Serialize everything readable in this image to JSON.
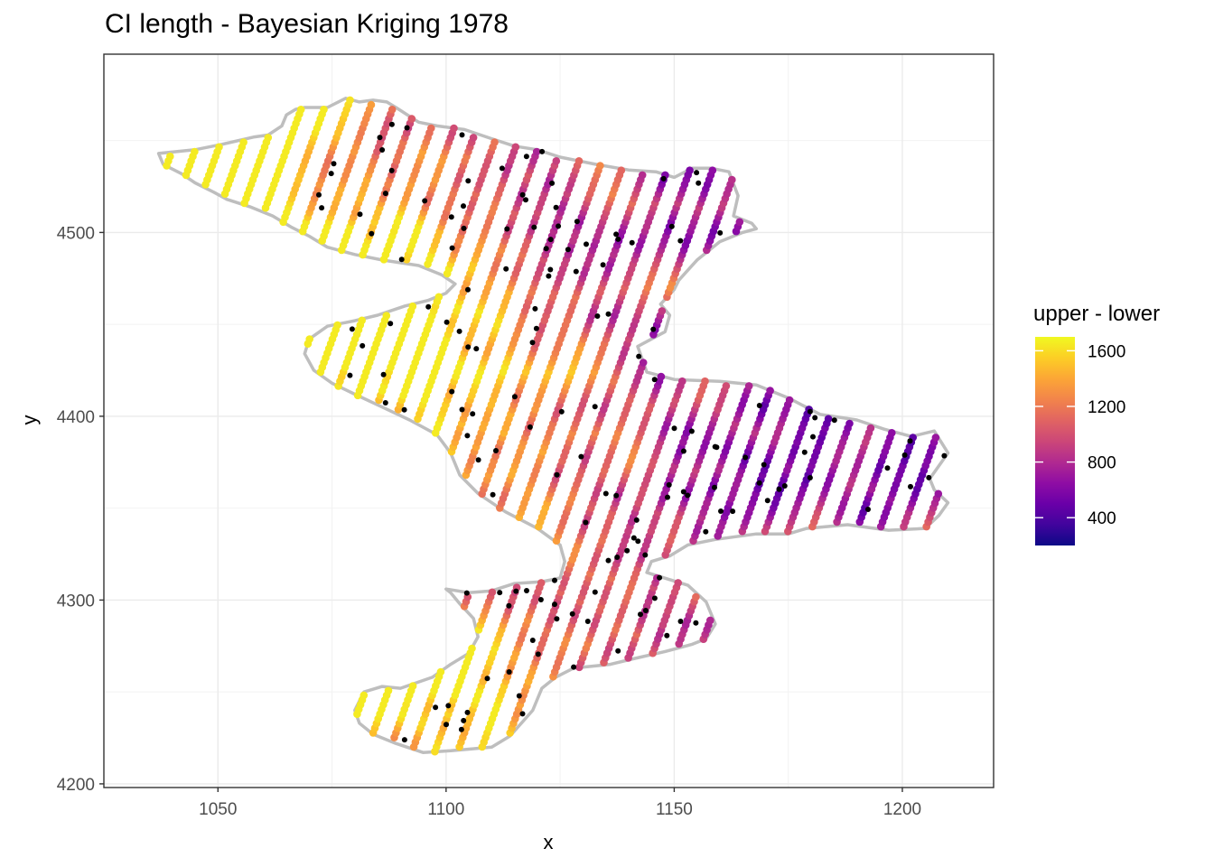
{
  "chart_data": {
    "type": "scatter",
    "title": "CI length - Bayesian Kriging 1978",
    "xlabel": "x",
    "ylabel": "y",
    "xlim": [
      1025,
      1220
    ],
    "ylim": [
      4198,
      4597
    ],
    "x_ticks": [
      1050,
      1100,
      1150,
      1200
    ],
    "y_ticks": [
      4200,
      4300,
      4400,
      4500
    ],
    "grid": true,
    "legend": {
      "title": "upper - lower",
      "position": "right",
      "range": [
        200,
        1700
      ],
      "ticks": [
        400,
        800,
        1200,
        1600
      ],
      "colors": [
        "#0d0887",
        "#41049d",
        "#6a00a8",
        "#8f0da4",
        "#b12a90",
        "#cc4778",
        "#e16462",
        "#f2844b",
        "#fca636",
        "#fcce25",
        "#f0f921"
      ]
    },
    "boundary_color": "#bebebe",
    "station_color": "#000000",
    "boundary": [
      [
        1037,
        4543
      ],
      [
        1045,
        4545
      ],
      [
        1051,
        4548
      ],
      [
        1058,
        4552
      ],
      [
        1061,
        4553
      ],
      [
        1064,
        4558
      ],
      [
        1065,
        4564
      ],
      [
        1067,
        4567
      ],
      [
        1069,
        4568
      ],
      [
        1074,
        4568
      ],
      [
        1078,
        4573
      ],
      [
        1081,
        4571
      ],
      [
        1084,
        4572
      ],
      [
        1087,
        4571
      ],
      [
        1089,
        4568
      ],
      [
        1094,
        4560
      ],
      [
        1098,
        4558
      ],
      [
        1104,
        4556
      ],
      [
        1110,
        4551
      ],
      [
        1115,
        4547
      ],
      [
        1120,
        4545
      ],
      [
        1125,
        4541
      ],
      [
        1133,
        4537
      ],
      [
        1140,
        4534
      ],
      [
        1146,
        4533
      ],
      [
        1150,
        4530
      ],
      [
        1154,
        4535
      ],
      [
        1158,
        4535
      ],
      [
        1162,
        4533
      ],
      [
        1164,
        4520
      ],
      [
        1163,
        4509
      ],
      [
        1167,
        4505
      ],
      [
        1168,
        4502
      ],
      [
        1165,
        4500
      ],
      [
        1160,
        4495
      ],
      [
        1155,
        4485
      ],
      [
        1151,
        4474
      ],
      [
        1150,
        4469
      ],
      [
        1147,
        4461
      ],
      [
        1149,
        4455
      ],
      [
        1148,
        4446
      ],
      [
        1142,
        4438
      ],
      [
        1143,
        4431
      ],
      [
        1144,
        4424
      ],
      [
        1150,
        4420
      ],
      [
        1160,
        4419
      ],
      [
        1168,
        4417
      ],
      [
        1175,
        4410
      ],
      [
        1182,
        4401
      ],
      [
        1190,
        4398
      ],
      [
        1196,
        4393
      ],
      [
        1202,
        4389
      ],
      [
        1207,
        4392
      ],
      [
        1210,
        4380
      ],
      [
        1206,
        4366
      ],
      [
        1207,
        4360
      ],
      [
        1210,
        4353
      ],
      [
        1208,
        4346
      ],
      [
        1205,
        4339
      ],
      [
        1197,
        4338
      ],
      [
        1188,
        4341
      ],
      [
        1179,
        4339
      ],
      [
        1175,
        4336
      ],
      [
        1168,
        4336
      ],
      [
        1159,
        4333
      ],
      [
        1153,
        4330
      ],
      [
        1149,
        4324
      ],
      [
        1145,
        4321
      ],
      [
        1144,
        4315
      ],
      [
        1153,
        4308
      ],
      [
        1157,
        4299
      ],
      [
        1159,
        4287
      ],
      [
        1157,
        4279
      ],
      [
        1154,
        4276
      ],
      [
        1148,
        4272
      ],
      [
        1141,
        4268
      ],
      [
        1136,
        4265
      ],
      [
        1128,
        4263
      ],
      [
        1124,
        4258
      ],
      [
        1121,
        4252
      ],
      [
        1119,
        4240
      ],
      [
        1114,
        4226
      ],
      [
        1110,
        4220
      ],
      [
        1101,
        4218
      ],
      [
        1095,
        4217
      ],
      [
        1089,
        4222
      ],
      [
        1084,
        4227
      ],
      [
        1081,
        4233
      ],
      [
        1080,
        4240
      ],
      [
        1082,
        4250
      ],
      [
        1086,
        4253
      ],
      [
        1090,
        4252
      ],
      [
        1097,
        4258
      ],
      [
        1101,
        4265
      ],
      [
        1105,
        4271
      ],
      [
        1107,
        4280
      ],
      [
        1106,
        4290
      ],
      [
        1103,
        4298
      ],
      [
        1101,
        4304
      ],
      [
        1100,
        4306
      ],
      [
        1105,
        4304
      ],
      [
        1110,
        4305
      ],
      [
        1115,
        4309
      ],
      [
        1121,
        4310
      ],
      [
        1125,
        4312
      ],
      [
        1126,
        4321
      ],
      [
        1125,
        4330
      ],
      [
        1120,
        4339
      ],
      [
        1113,
        4348
      ],
      [
        1107,
        4358
      ],
      [
        1103,
        4368
      ],
      [
        1101,
        4380
      ],
      [
        1098,
        4390
      ],
      [
        1092,
        4398
      ],
      [
        1086,
        4405
      ],
      [
        1080,
        4412
      ],
      [
        1075,
        4418
      ],
      [
        1071,
        4425
      ],
      [
        1069,
        4434
      ],
      [
        1070,
        4442
      ],
      [
        1074,
        4449
      ],
      [
        1080,
        4452
      ],
      [
        1085,
        4455
      ],
      [
        1091,
        4460
      ],
      [
        1096,
        4463
      ],
      [
        1100,
        4467
      ],
      [
        1102,
        4472
      ],
      [
        1099,
        4477
      ],
      [
        1094,
        4482
      ],
      [
        1086,
        4485
      ],
      [
        1080,
        4488
      ],
      [
        1074,
        4492
      ],
      [
        1070,
        4498
      ],
      [
        1066,
        4503
      ],
      [
        1062,
        4509
      ],
      [
        1057,
        4514
      ],
      [
        1052,
        4518
      ],
      [
        1049,
        4522
      ],
      [
        1045,
        4527
      ],
      [
        1042,
        4532
      ],
      [
        1038,
        4537
      ]
    ],
    "grid_points_count": 1180,
    "stations_count": 160
  }
}
